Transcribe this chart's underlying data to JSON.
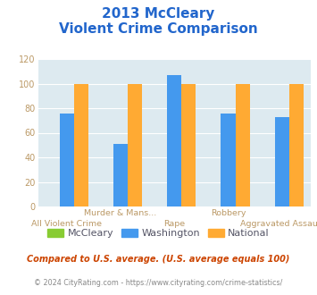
{
  "title_line1": "2013 McCleary",
  "title_line2": "Violent Crime Comparison",
  "categories": [
    "All Violent Crime",
    "Murder & Mans...",
    "Rape",
    "Robbery",
    "Aggravated Assault"
  ],
  "cat_line1": [
    "",
    "Murder & Mans...",
    "",
    "Robbery",
    ""
  ],
  "cat_line2": [
    "All Violent Crime",
    "",
    "Rape",
    "",
    "Aggravated Assault"
  ],
  "series": {
    "McCleary": [
      0,
      0,
      0,
      0,
      0
    ],
    "Washington": [
      76,
      51,
      107,
      76,
      73
    ],
    "National": [
      100,
      100,
      100,
      100,
      100
    ]
  },
  "colors": {
    "McCleary": "#88cc33",
    "Washington": "#4499ee",
    "National": "#ffaa33"
  },
  "ylim": [
    0,
    120
  ],
  "yticks": [
    0,
    20,
    40,
    60,
    80,
    100,
    120
  ],
  "bg_color": "#ddeaf0",
  "title_color": "#2266cc",
  "axis_label_color": "#bb9966",
  "legend_label_color": "#555566",
  "footnote1": "Compared to U.S. average. (U.S. average equals 100)",
  "footnote2": "© 2024 CityRating.com - https://www.cityrating.com/crime-statistics/",
  "footnote1_color": "#cc4400",
  "footnote2_color": "#888888",
  "footnote2_link_color": "#4499bb"
}
